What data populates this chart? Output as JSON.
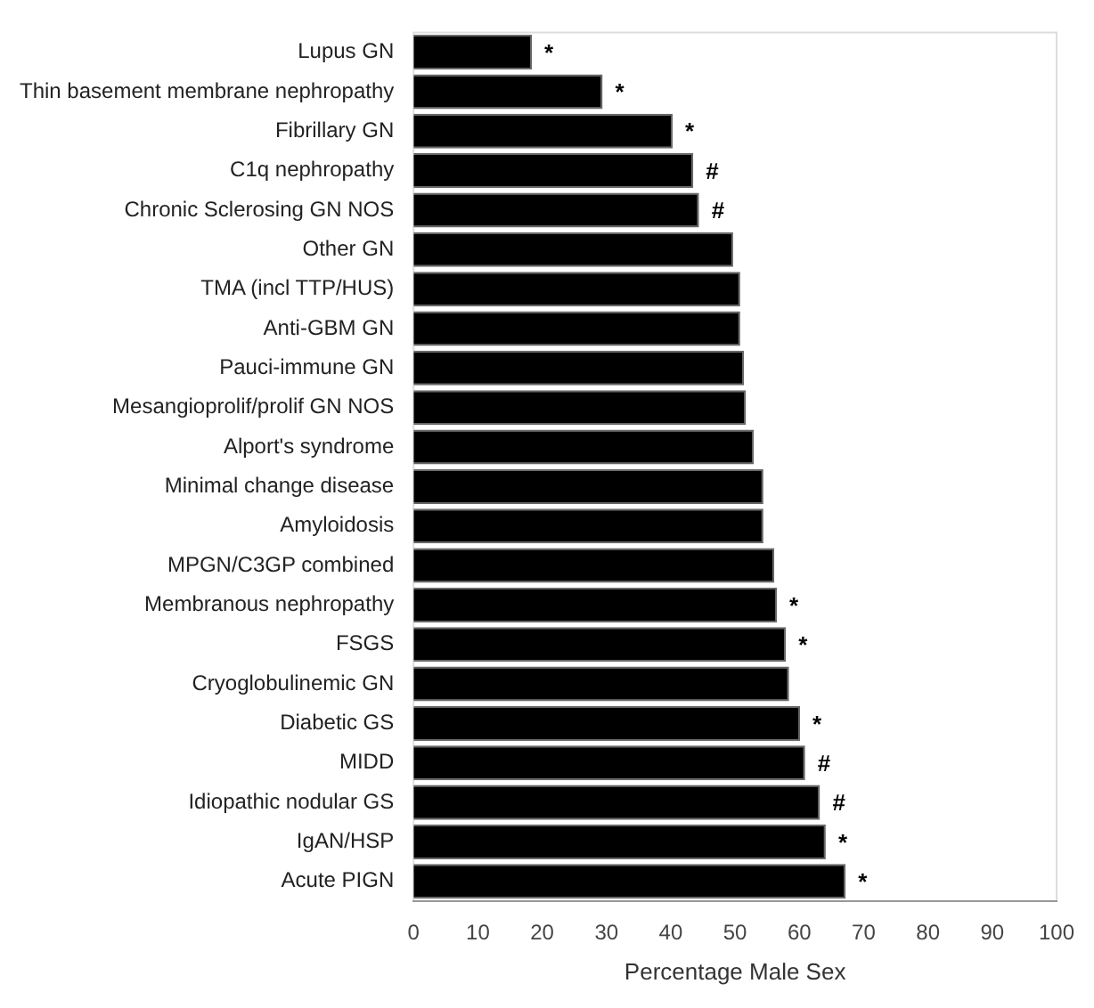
{
  "chart_data": {
    "type": "bar",
    "orientation": "horizontal",
    "xlabel": "Percentage Male Sex",
    "categories": [
      "Lupus GN",
      "Thin basement membrane nephropathy",
      "Fibrillary GN",
      "C1q nephropathy",
      "Chronic Sclerosing GN NOS",
      "Other GN",
      "TMA (incl TTP/HUS)",
      "Anti-GBM GN",
      "Pauci-immune GN",
      "Mesangioprolif/prolif GN NOS",
      "Alport's syndrome",
      "Minimal change disease",
      "Amyloidosis",
      "MPGN/C3GP combined",
      "Membranous nephropathy",
      "FSGS",
      "Cryoglobulinemic GN",
      "Diabetic GS",
      "MIDD",
      "Idiopathic nodular GS",
      "IgAN/HSP",
      "Acute PIGN"
    ],
    "values": [
      18.4,
      29.4,
      40.3,
      43.5,
      44.4,
      49.7,
      50.8,
      50.8,
      51.4,
      51.7,
      52.9,
      54.4,
      54.4,
      56.1,
      56.5,
      57.9,
      58.4,
      60.1,
      60.9,
      63.2,
      64.1,
      67.2
    ],
    "color": "#000000",
    "xlim": [
      0,
      100
    ],
    "xticks": [
      0,
      10,
      20,
      30,
      40,
      50,
      60,
      70,
      80,
      90,
      100
    ],
    "grid": false,
    "legend": false,
    "annotations": [
      {
        "text": "*",
        "x": 18.4,
        "y": "Lupus GN"
      },
      {
        "text": "*",
        "x": 29.4,
        "y": "Thin basement membrane nephropathy"
      },
      {
        "text": "*",
        "x": 40.3,
        "y": "Fibrillary GN"
      },
      {
        "text": "#",
        "x": 43.5,
        "y": "C1q nephropathy"
      },
      {
        "text": "#",
        "x": 44.4,
        "y": "Chronic Sclerosing GN NOS"
      },
      {
        "text": "*",
        "x": 56.5,
        "y": "Membranous nephropathy"
      },
      {
        "text": "*",
        "x": 57.9,
        "y": "FSGS"
      },
      {
        "text": "*",
        "x": 60.1,
        "y": "Diabetic GS"
      },
      {
        "text": "#",
        "x": 60.9,
        "y": "MIDD"
      },
      {
        "text": "#",
        "x": 63.2,
        "y": "Idiopathic nodular GS"
      },
      {
        "text": "*",
        "x": 64.1,
        "y": "IgAN/HSP"
      },
      {
        "text": "*",
        "x": 67.2,
        "y": "Acute PIGN"
      }
    ]
  }
}
